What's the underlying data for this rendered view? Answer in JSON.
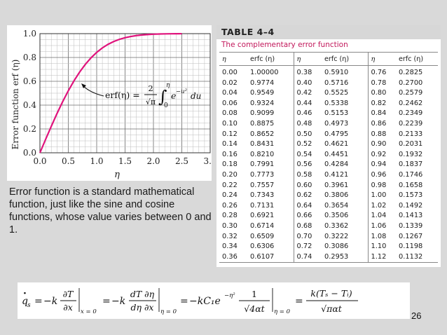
{
  "slide": {
    "page_number": "26",
    "caption": "Error function is a standard mathematical function, just like the sine and cosine functions, whose value varies between 0 and 1."
  },
  "chart_data": {
    "type": "line",
    "ylabel": "Error function erf (η)",
    "xlabel": "η",
    "xlim": [
      0,
      3
    ],
    "ylim": [
      0,
      1
    ],
    "x_ticks": [
      "0.0",
      "0.5",
      "1.0",
      "1.5",
      "2.0",
      "2.5",
      "3.0"
    ],
    "y_ticks": [
      "0.0",
      "0.2",
      "0.4",
      "0.6",
      "0.8",
      "1.0"
    ],
    "grid": true,
    "line_color": "#e0137c",
    "annotation": {
      "lhs": "erf(η) =",
      "numerator": "2",
      "denominator": "√π",
      "upper_limit": "η",
      "lower_limit": "0",
      "integrand": "e",
      "exponent": "−u²",
      "differential": "du"
    },
    "x": [
      0,
      0.1,
      0.2,
      0.3,
      0.4,
      0.5,
      0.6,
      0.7,
      0.8,
      0.9,
      1.0,
      1.1,
      1.2,
      1.3,
      1.4,
      1.5,
      1.6,
      1.7,
      1.8,
      1.9,
      2.0,
      2.1,
      2.2,
      2.3,
      2.4,
      2.5
    ],
    "y": [
      0,
      0.1125,
      0.2227,
      0.3286,
      0.4284,
      0.5205,
      0.6039,
      0.6778,
      0.7421,
      0.7969,
      0.8427,
      0.8802,
      0.9103,
      0.934,
      0.9523,
      0.9661,
      0.9763,
      0.9838,
      0.9891,
      0.9928,
      0.9953,
      0.997,
      0.9981,
      0.9989,
      0.9993,
      0.9996
    ]
  },
  "table": {
    "title": "TABLE 4–4",
    "subtitle": "The complementary error function",
    "headers": [
      "η",
      "erfc (η)",
      "η",
      "erfc (η)",
      "η",
      "erfc (η)"
    ],
    "rows": [
      [
        "0.00",
        "1.00000",
        "0.38",
        "0.5910",
        "0.76",
        "0.2825"
      ],
      [
        "0.02",
        "0.9774",
        "0.40",
        "0.5716",
        "0.78",
        "0.2700"
      ],
      [
        "0.04",
        "0.9549",
        "0.42",
        "0.5525",
        "0.80",
        "0.2579"
      ],
      [
        "0.06",
        "0.9324",
        "0.44",
        "0.5338",
        "0.82",
        "0.2462"
      ],
      [
        "0.08",
        "0.9099",
        "0.46",
        "0.5153",
        "0.84",
        "0.2349"
      ],
      [
        "0.10",
        "0.8875",
        "0.48",
        "0.4973",
        "0.86",
        "0.2239"
      ],
      [
        "0.12",
        "0.8652",
        "0.50",
        "0.4795",
        "0.88",
        "0.2133"
      ],
      [
        "0.14",
        "0.8431",
        "0.52",
        "0.4621",
        "0.90",
        "0.2031"
      ],
      [
        "0.16",
        "0.8210",
        "0.54",
        "0.4451",
        "0.92",
        "0.1932"
      ],
      [
        "0.18",
        "0.7991",
        "0.56",
        "0.4284",
        "0.94",
        "0.1837"
      ],
      [
        "0.20",
        "0.7773",
        "0.58",
        "0.4121",
        "0.96",
        "0.1746"
      ],
      [
        "0.22",
        "0.7557",
        "0.60",
        "0.3961",
        "0.98",
        "0.1658"
      ],
      [
        "0.24",
        "0.7343",
        "0.62",
        "0.3806",
        "1.00",
        "0.1573"
      ],
      [
        "0.26",
        "0.7131",
        "0.64",
        "0.3654",
        "1.02",
        "0.1492"
      ],
      [
        "0.28",
        "0.6921",
        "0.66",
        "0.3506",
        "1.04",
        "0.1413"
      ],
      [
        "0.30",
        "0.6714",
        "0.68",
        "0.3362",
        "1.06",
        "0.1339"
      ],
      [
        "0.32",
        "0.6509",
        "0.70",
        "0.3222",
        "1.08",
        "0.1267"
      ],
      [
        "0.34",
        "0.6306",
        "0.72",
        "0.3086",
        "1.10",
        "0.1198"
      ],
      [
        "0.36",
        "0.6107",
        "0.74",
        "0.2953",
        "1.12",
        "0.1132"
      ]
    ]
  },
  "equation": {
    "q": "q",
    "dot": "·",
    "sub_s": "s",
    "eq1": "=",
    "minus_k1": "−k",
    "f1_num": "∂T",
    "f1_den": "∂x",
    "eval1": "x = 0",
    "eq2": "=",
    "minus_k2": "−k",
    "f2_num": "dT ∂η",
    "f2_den": "dη ∂x",
    "eval2": "η = 0",
    "eq3": "=",
    "term3": "−kC₁e",
    "term3_exp": "−η²",
    "f3_num": "1",
    "f3_den": "√4αt",
    "eval3": "η = 0",
    "eq4": "=",
    "f4_num": "k(Tₛ − Tᵢ)",
    "f4_den": "√παt"
  }
}
